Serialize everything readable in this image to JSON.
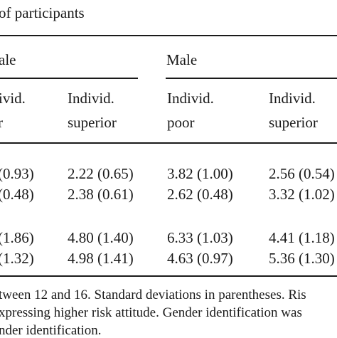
{
  "table": {
    "caption_fragment": "of participants",
    "groups": {
      "female_fragment": "ale",
      "male": "Male"
    },
    "columns": [
      {
        "line1": "ivid.",
        "line2": "r"
      },
      {
        "line1": "Individ.",
        "line2": "superior"
      },
      {
        "line1": "Individ.",
        "line2": "poor"
      },
      {
        "line1": "Individ.",
        "line2": "superior"
      }
    ],
    "rows": [
      [
        "(0.93)",
        "2.22 (0.65)",
        "3.82 (1.00)",
        "2.56 (0.54)"
      ],
      [
        "(0.48)",
        "2.38 (0.61)",
        "2.62 (0.48)",
        "3.32 (1.02)"
      ],
      [
        "(1.86)",
        "4.80 (1.40)",
        "6.33 (1.03)",
        "4.41 (1.18)"
      ],
      [
        "(1.32)",
        "4.98 (1.41)",
        "4.63 (0.97)",
        "5.36 (1.30)"
      ]
    ]
  },
  "footnote": {
    "line1": "tween 12 and 16. Standard deviations in parentheses. Ris",
    "line2": "xpressing higher risk attitude. Gender identification was",
    "line3": "nder identification."
  }
}
